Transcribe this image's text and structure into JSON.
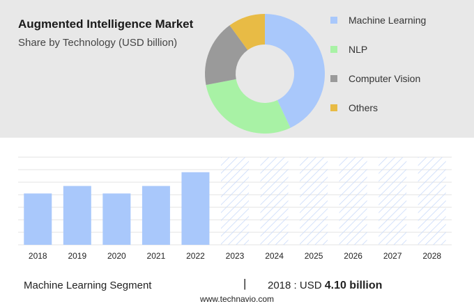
{
  "header": {
    "title": "Augmented Intelligence Market",
    "subtitle": "Share by Technology (USD billion)"
  },
  "colors": {
    "machine_learning": "#a9c8fb",
    "nlp": "#a8f2a5",
    "computer_vision": "#9a9a9a",
    "others": "#e8bb45",
    "forecast_hatch": "#c9dafa",
    "panel_bg": "#e8e8e8"
  },
  "chart_data": [
    {
      "type": "pie",
      "title": "Augmented Intelligence Market",
      "subtitle": "Share by Technology (USD billion)",
      "donut": true,
      "legend_position": "right",
      "labels": [
        "Machine Learning",
        "NLP",
        "Computer Vision",
        "Others"
      ],
      "values": [
        43,
        29,
        18,
        10
      ],
      "colors": [
        "#a9c8fb",
        "#a8f2a5",
        "#9a9a9a",
        "#e8bb45"
      ]
    },
    {
      "type": "bar",
      "categories": [
        "2018",
        "2019",
        "2020",
        "2021",
        "2022",
        "2023",
        "2024",
        "2025",
        "2026",
        "2027",
        "2028"
      ],
      "values": [
        4.1,
        4.7,
        4.1,
        4.7,
        5.8,
        null,
        null,
        null,
        null,
        null,
        null
      ],
      "forecast_categories": [
        "2023",
        "2024",
        "2025",
        "2026",
        "2027",
        "2028"
      ],
      "ylim": [
        0,
        7
      ],
      "grid": true,
      "xlabel": "",
      "ylabel": ""
    }
  ],
  "footer": {
    "segment": "Machine Learning Segment",
    "separator": "|",
    "year_label": "2018 : USD",
    "value_label": "4.10 billion",
    "source": "www.technavio.com"
  }
}
